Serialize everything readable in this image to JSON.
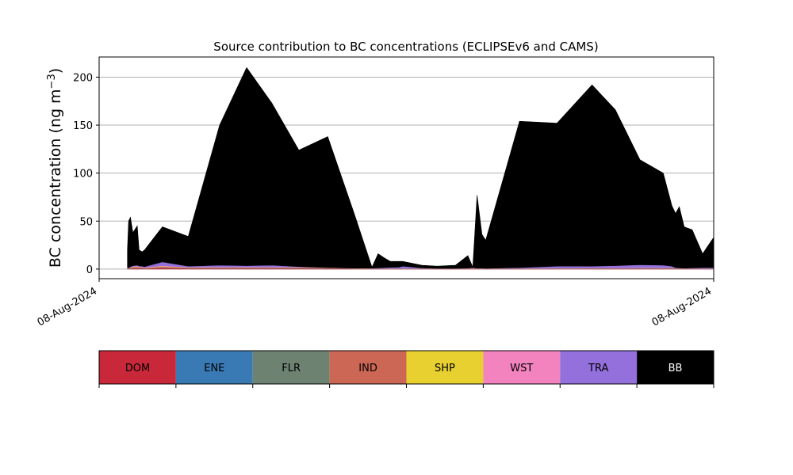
{
  "chart_data": {
    "type": "area",
    "stacked": true,
    "title": "Source contribution to BC concentrations (ECLIPSEv6 and CAMS)",
    "ylabel_main": "BC concentration (ng m",
    "ylabel_sup": "−3",
    "ylabel_tail": ")",
    "xlabel": "",
    "x_tick_labels": [
      "08-Aug-2024",
      "08-Aug-2024"
    ],
    "y_ticks": [
      0,
      50,
      100,
      150,
      200
    ],
    "ylim": [
      -10,
      221
    ],
    "xlim": [
      0,
      100
    ],
    "grid": "horizontal",
    "colors": {
      "DOM": "#c8283a",
      "ENE": "#3a7ab4",
      "FLR": "#6e8272",
      "IND": "#cc6655",
      "SHP": "#e8d030",
      "WST": "#f283bf",
      "TRA": "#9370db",
      "BB": "#000000"
    },
    "legend": {
      "placement": "bottom",
      "items": [
        {
          "key": "DOM",
          "label": "DOM",
          "text_color": "#000000"
        },
        {
          "key": "ENE",
          "label": "ENE",
          "text_color": "#000000"
        },
        {
          "key": "FLR",
          "label": "FLR",
          "text_color": "#000000"
        },
        {
          "key": "IND",
          "label": "IND",
          "text_color": "#000000"
        },
        {
          "key": "SHP",
          "label": "SHP",
          "text_color": "#000000"
        },
        {
          "key": "WST",
          "label": "WST",
          "text_color": "#000000"
        },
        {
          "key": "TRA",
          "label": "TRA",
          "text_color": "#000000"
        },
        {
          "key": "BB",
          "label": "BB",
          "text_color": "#ffffff"
        }
      ]
    },
    "x": [
      4.6,
      4.8,
      5.1,
      5.5,
      6.2,
      6.5,
      7.0,
      7.4,
      10.3,
      14.5,
      19.6,
      24.0,
      28.1,
      32.5,
      37.2,
      41.5,
      44.4,
      45.4,
      46.3,
      47.4,
      48.8,
      49.4,
      52.5,
      55.0,
      58.0,
      60.0,
      60.8,
      61.5,
      62.3,
      62.9,
      68.4,
      74.5,
      80.2,
      84.0,
      88.0,
      91.8,
      93.2,
      93.8,
      94.4,
      95.2,
      96.5,
      98.2,
      100.0
    ],
    "series_stacked_tops": {
      "DOM": [
        0.5,
        0.3,
        0.5,
        0.8,
        1.0,
        0.8,
        0.8,
        0.5,
        1.2,
        0.8,
        0.8,
        0.8,
        0.8,
        0.8,
        0.6,
        0.4,
        0.3,
        0.3,
        0.3,
        0.3,
        0.3,
        0.3,
        0.3,
        0.3,
        0.3,
        0.3,
        0.4,
        0.3,
        0.3,
        0.3,
        0.3,
        0.3,
        0.4,
        0.4,
        0.4,
        0.4,
        0.4,
        0.4,
        0.3,
        0.3,
        0.3,
        0.3,
        0.3
      ],
      "ENE": [
        0.6,
        0.4,
        0.6,
        0.9,
        1.1,
        0.9,
        0.9,
        0.6,
        1.4,
        0.9,
        0.9,
        0.9,
        0.9,
        0.9,
        0.7,
        0.5,
        0.4,
        0.4,
        0.4,
        0.4,
        0.4,
        0.4,
        0.4,
        0.4,
        0.4,
        0.4,
        0.5,
        0.4,
        0.4,
        0.4,
        0.4,
        0.4,
        0.5,
        0.5,
        0.5,
        0.5,
        0.5,
        0.5,
        0.4,
        0.4,
        0.4,
        0.4,
        0.4
      ],
      "FLR": [
        0.8,
        0.5,
        0.8,
        1.1,
        1.4,
        1.1,
        1.1,
        0.8,
        1.7,
        1.1,
        1.1,
        1.1,
        1.1,
        1.1,
        0.9,
        0.6,
        0.5,
        0.5,
        0.5,
        0.5,
        0.5,
        0.5,
        0.5,
        0.5,
        0.5,
        0.5,
        0.6,
        0.5,
        0.5,
        0.5,
        0.5,
        0.5,
        0.6,
        0.6,
        0.6,
        0.6,
        0.6,
        0.6,
        0.5,
        0.5,
        0.5,
        0.5,
        0.5
      ],
      "IND": [
        1.2,
        0.8,
        1.4,
        2.0,
        2.4,
        1.8,
        1.6,
        1.2,
        2.6,
        1.5,
        1.6,
        1.6,
        1.6,
        1.5,
        1.2,
        0.8,
        0.6,
        0.6,
        0.6,
        0.6,
        0.6,
        0.6,
        0.6,
        0.6,
        0.6,
        0.7,
        0.8,
        0.6,
        0.6,
        0.6,
        0.6,
        0.7,
        0.9,
        0.9,
        1.0,
        1.0,
        1.0,
        0.9,
        0.7,
        0.6,
        0.6,
        0.6,
        0.6
      ],
      "SHP": [
        1.4,
        0.9,
        1.6,
        2.3,
        2.8,
        2.1,
        1.8,
        1.4,
        3.0,
        1.7,
        1.8,
        1.8,
        1.8,
        1.7,
        1.4,
        0.9,
        0.7,
        0.7,
        0.7,
        0.7,
        0.7,
        0.7,
        0.7,
        0.7,
        0.7,
        0.8,
        0.9,
        0.7,
        0.7,
        0.7,
        0.7,
        0.8,
        1.0,
        1.0,
        1.1,
        1.1,
        1.1,
        1.0,
        0.8,
        0.7,
        0.7,
        0.7,
        0.7
      ],
      "WST": [
        1.7,
        1.1,
        1.9,
        2.7,
        3.3,
        2.5,
        2.1,
        1.7,
        3.6,
        2.0,
        2.1,
        2.1,
        2.1,
        2.0,
        1.6,
        1.1,
        0.8,
        0.8,
        0.8,
        0.8,
        0.8,
        0.8,
        0.8,
        0.8,
        0.8,
        1.0,
        1.1,
        0.8,
        0.8,
        0.8,
        0.8,
        1.0,
        1.2,
        1.2,
        1.3,
        1.3,
        1.3,
        1.2,
        1.0,
        0.8,
        0.8,
        0.8,
        0.8
      ],
      "TRA": [
        1.8,
        1.2,
        2.5,
        3.5,
        4.0,
        3.2,
        3.0,
        2.5,
        7.5,
        3.0,
        4.0,
        3.5,
        4.0,
        2.5,
        1.5,
        1.0,
        1.0,
        1.2,
        1.5,
        1.8,
        2.0,
        3.0,
        1.2,
        0.8,
        0.8,
        1.0,
        1.5,
        1.0,
        1.0,
        0.8,
        1.5,
        3.0,
        3.0,
        3.5,
        4.5,
        4.0,
        3.0,
        1.5,
        1.2,
        1.0,
        1.2,
        1.5,
        1.5
      ],
      "BB": [
        20,
        50,
        54,
        38,
        45,
        20,
        18,
        20,
        44,
        34,
        150,
        210,
        173,
        124,
        138,
        58,
        2,
        16,
        12,
        8,
        8,
        8,
        4,
        3,
        4,
        14,
        2,
        77,
        36,
        30,
        154,
        152,
        192,
        166,
        114,
        100,
        66,
        58,
        65,
        44,
        41,
        16,
        33
      ]
    }
  }
}
